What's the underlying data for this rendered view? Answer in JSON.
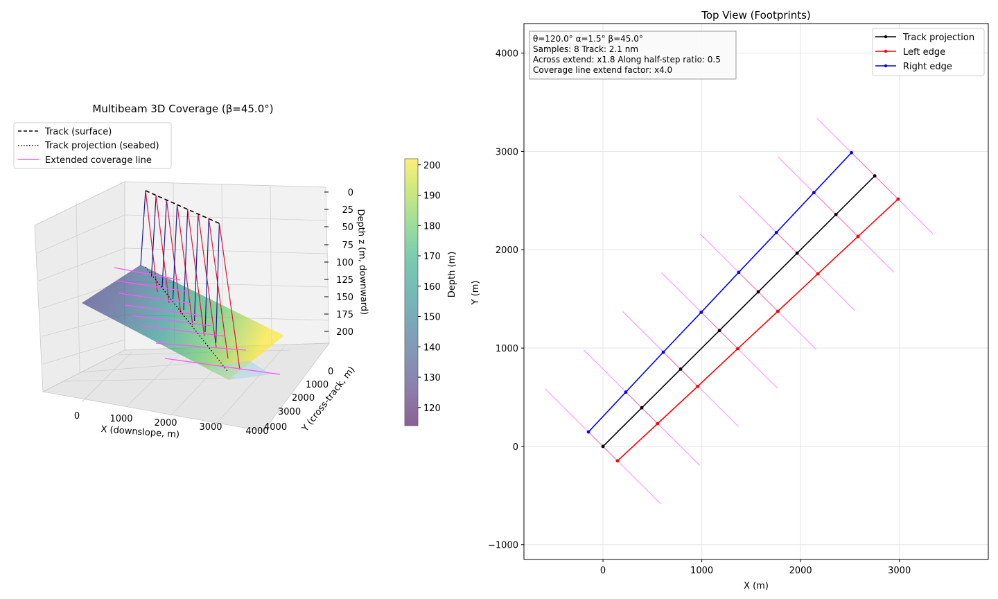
{
  "figure": {
    "left_title": "Multibeam 3D Coverage (β=45.0°)",
    "right_title": "Top View (Footprints)"
  },
  "left_plot": {
    "legend": [
      {
        "label": "Track (surface)",
        "style": "dashed",
        "color": "#000000"
      },
      {
        "label": "Track projection (seabed)",
        "style": "dotted",
        "color": "#000000"
      },
      {
        "label": "Extended coverage line",
        "style": "solid",
        "color": "#ff55ff"
      }
    ],
    "xlabel": "X (downslope, m)",
    "ylabel": "Y (cross-track, m)",
    "zlabel": "Depth z (m, downward)",
    "x_ticks": [
      "0",
      "1000",
      "2000",
      "3000",
      "4000"
    ],
    "y_ticks": [
      "0",
      "1000",
      "2000",
      "3000",
      "4000"
    ],
    "z_ticks": [
      "0",
      "25",
      "50",
      "75",
      "100",
      "125",
      "150",
      "175",
      "200"
    ],
    "colorbar": {
      "label": "Depth (m)",
      "ticks": [
        "120",
        "130",
        "140",
        "150",
        "160",
        "170",
        "180",
        "190",
        "200"
      ],
      "range": [
        114,
        202
      ]
    }
  },
  "chart_data": [
    {
      "type": "surface",
      "title": "Multibeam 3D Coverage (β=45.0°)",
      "xlabel": "X (downslope, m)",
      "ylabel": "Y (cross-track, m)",
      "zlabel": "Depth z (m, downward)",
      "xlim": [
        -1000,
        4000
      ],
      "ylim": [
        0,
        4000
      ],
      "zlim": [
        0,
        215
      ],
      "colorbar": {
        "label": "Depth (m)",
        "min": 114,
        "max": 202
      },
      "series": [
        {
          "name": "Track (surface)",
          "style": "dashed"
        },
        {
          "name": "Track projection (seabed)",
          "style": "dotted"
        },
        {
          "name": "Extended coverage line"
        }
      ]
    },
    {
      "type": "line",
      "title": "Top View (Footprints)",
      "xlabel": "X (m)",
      "ylabel": "Y (m)",
      "xlim": [
        -800,
        3900
      ],
      "ylim": [
        -1150,
        4300
      ],
      "x_ticks": [
        0,
        1000,
        2000,
        3000
      ],
      "y_ticks": [
        -1000,
        0,
        1000,
        2000,
        3000,
        4000
      ],
      "grid": true,
      "legend_position": "top-right",
      "info_box": [
        "θ=120.0°  α=1.5°  β=45.0°",
        "Samples: 8  Track: 2.1 nm",
        "Across extend: x1.8  Along half-step ratio: 0.5",
        "Coverage line extend factor: x4.0"
      ],
      "series": [
        {
          "name": "Track projection",
          "color": "#000000",
          "x": [
            0,
            393,
            786,
            1179,
            1572,
            1965,
            2358,
            2751
          ],
          "y": [
            0,
            393,
            786,
            1179,
            1572,
            1965,
            2358,
            2751
          ]
        },
        {
          "name": "Left edge",
          "color": "#ff0000",
          "x": [
            147,
            552,
            958,
            1364,
            1770,
            2175,
            2581,
            2987
          ],
          "y": [
            -147,
            231,
            610,
            994,
            1374,
            1755,
            2135,
            2515
          ]
        },
        {
          "name": "Right edge",
          "color": "#0000ff",
          "x": [
            -147,
            231,
            610,
            994,
            1374,
            1755,
            2135,
            2515
          ],
          "y": [
            147,
            552,
            958,
            1364,
            1770,
            2175,
            2581,
            2987
          ]
        }
      ],
      "coverage_lines": {
        "color": "#ff80ff",
        "center_x": [
          0,
          393,
          786,
          1179,
          1572,
          1965,
          2358,
          2751
        ],
        "center_y": [
          0,
          393,
          786,
          1179,
          1572,
          1965,
          2358,
          2751
        ],
        "half_length_m": 830,
        "direction": [
          -0.707,
          0.707
        ]
      }
    }
  ]
}
